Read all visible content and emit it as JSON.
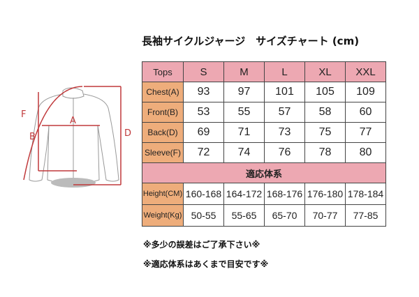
{
  "title": "長袖サイクルジャージ　サイズチャート (cm)",
  "diagram_labels": {
    "a": "A",
    "b": "B",
    "d": "D",
    "f": "F"
  },
  "accent_colors": {
    "header": "#eda8b2",
    "label_column": "#eead7b",
    "diagram": "#c0393b"
  },
  "table": {
    "corner": "Tops",
    "sizes": [
      "S",
      "M",
      "L",
      "XL",
      "XXL"
    ],
    "rows": [
      {
        "label": "Chest(A)",
        "values": [
          "93",
          "97",
          "101",
          "105",
          "109"
        ]
      },
      {
        "label": "Front(B)",
        "values": [
          "53",
          "55",
          "57",
          "58",
          "60"
        ]
      },
      {
        "label": "Back(D)",
        "values": [
          "69",
          "71",
          "73",
          "75",
          "77"
        ]
      },
      {
        "label": "Sleeve(F)",
        "values": [
          "72",
          "74",
          "76",
          "78",
          "80"
        ]
      }
    ],
    "banner": "適応体系",
    "body_rows": [
      {
        "label": "Height(CM)",
        "values": [
          "160-168",
          "164-172",
          "168-176",
          "176-180",
          "178-184"
        ]
      },
      {
        "label": "Weight(Kg)",
        "values": [
          "50-55",
          "55-65",
          "65-70",
          "70-77",
          "77-85"
        ]
      }
    ]
  },
  "notes": [
    "※多少の誤差はご了承下さい※",
    "※適応体系はあくまで目安です※"
  ]
}
